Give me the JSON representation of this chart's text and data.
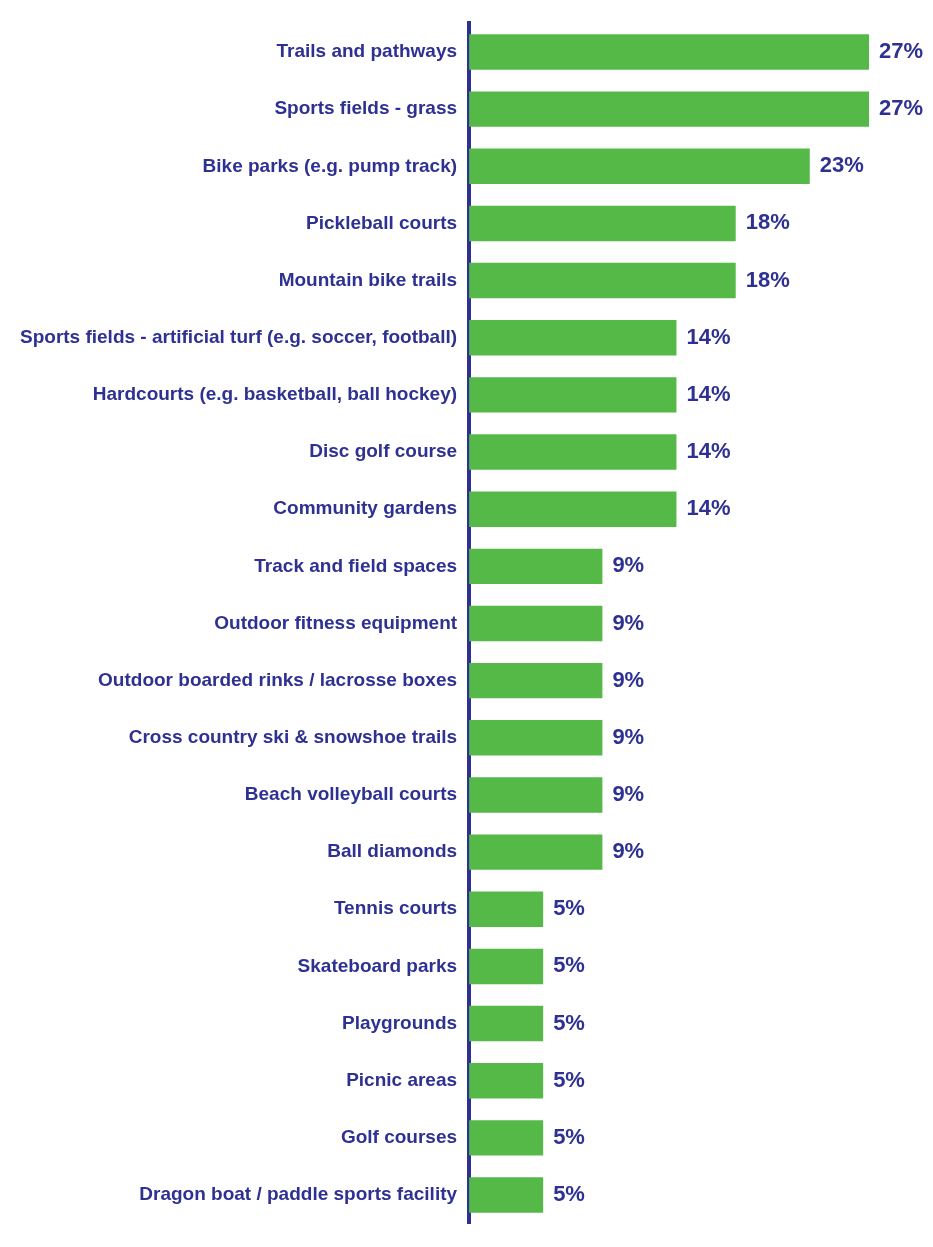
{
  "chart_data": {
    "type": "bar",
    "orientation": "horizontal",
    "color": "#55b947",
    "categories": [
      "Trails and pathways",
      "Sports fields - grass",
      "Bike parks (e.g. pump track)",
      "Pickleball courts",
      "Mountain bike trails",
      "Sports fields - artificial turf (e.g. soccer, football)",
      "Hardcourts (e.g. basketball, ball hockey)",
      "Disc golf course",
      "Community gardens",
      "Track and field spaces",
      "Outdoor fitness equipment",
      "Outdoor boarded rinks / lacrosse boxes",
      "Cross country ski & snowshoe trails",
      "Beach volleyball courts",
      "Ball diamonds",
      "Tennis courts",
      "Skateboard parks",
      "Playgrounds",
      "Picnic areas",
      "Golf courses",
      "Dragon boat / paddle sports facility"
    ],
    "values": [
      27,
      27,
      23,
      18,
      18,
      14,
      14,
      14,
      14,
      9,
      9,
      9,
      9,
      9,
      9,
      5,
      5,
      5,
      5,
      5,
      5
    ],
    "value_labels": [
      "27%",
      "27%",
      "23%",
      "18%",
      "18%",
      "14%",
      "14%",
      "14%",
      "14%",
      "9%",
      "9%",
      "9%",
      "9%",
      "9%",
      "9%",
      "5%",
      "5%",
      "5%",
      "5%",
      "5%",
      "5%"
    ]
  }
}
